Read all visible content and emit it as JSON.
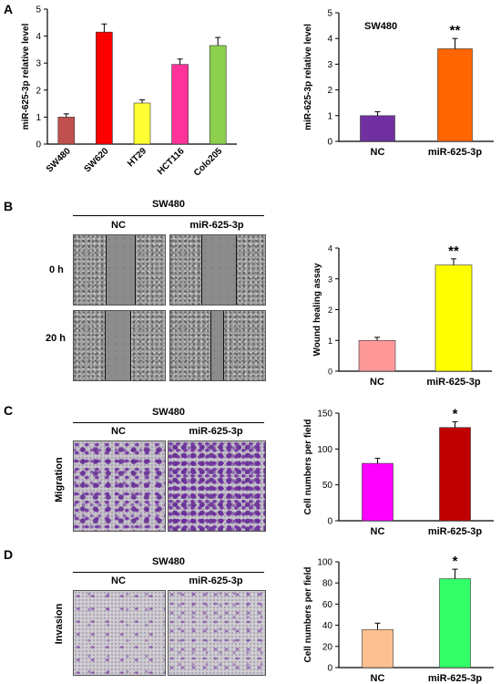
{
  "panels": {
    "a": "A",
    "b": "B",
    "c": "C",
    "d": "D"
  },
  "panel_b": {
    "header": "SW480",
    "col_nc": "NC",
    "col_mir": "miR-625-3p",
    "row_0h": "0 h",
    "row_20h": "20 h"
  },
  "panel_c": {
    "header": "SW480",
    "col_nc": "NC",
    "col_mir": "miR-625-3p",
    "side_label": "Migration"
  },
  "panel_d": {
    "header": "SW480",
    "col_nc": "NC",
    "col_mir": "miR-625-3p",
    "side_label": "Invasion"
  },
  "chart_data": [
    {
      "id": "a_left",
      "type": "bar",
      "categories": [
        "SW480",
        "SW620",
        "HT29",
        "HCT116",
        "Colo205"
      ],
      "values": [
        1.0,
        4.15,
        1.52,
        2.95,
        3.65
      ],
      "errors": [
        0.12,
        0.3,
        0.12,
        0.2,
        0.3
      ],
      "colors": [
        "#c0504d",
        "#ff0000",
        "#ffff33",
        "#ff3399",
        "#8dd04d"
      ],
      "ylabel": "miR-625-3p relative level",
      "ylim": [
        0,
        5
      ],
      "yticks": [
        0,
        1,
        2,
        3,
        4,
        5
      ],
      "annotations": [],
      "title": ""
    },
    {
      "id": "a_right",
      "type": "bar",
      "categories": [
        "NC",
        "miR-625-3p"
      ],
      "values": [
        1.0,
        3.6
      ],
      "errors": [
        0.15,
        0.4
      ],
      "colors": [
        "#7030a0",
        "#ff6600"
      ],
      "ylabel": "miR-625-3p relative level",
      "ylim": [
        0,
        5
      ],
      "yticks": [
        0,
        1,
        2,
        3,
        4,
        5
      ],
      "annotations": [
        "",
        "**"
      ],
      "title": "SW480"
    },
    {
      "id": "b_right",
      "type": "bar",
      "categories": [
        "NC",
        "miR-625-3p"
      ],
      "values": [
        1.0,
        3.45
      ],
      "errors": [
        0.1,
        0.2
      ],
      "colors": [
        "#ff9999",
        "#ffff00"
      ],
      "ylabel": "Wound healing assay",
      "ylim": [
        0,
        4
      ],
      "yticks": [
        0,
        1,
        2,
        3,
        4
      ],
      "annotations": [
        "",
        "**"
      ],
      "title": ""
    },
    {
      "id": "c_right",
      "type": "bar",
      "categories": [
        "NC",
        "miR-625-3p"
      ],
      "values": [
        80,
        130
      ],
      "errors": [
        7,
        8
      ],
      "colors": [
        "#ff00ff",
        "#c00000"
      ],
      "ylabel": "Cell numbers per field",
      "ylim": [
        0,
        150
      ],
      "yticks": [
        0,
        50,
        100,
        150
      ],
      "annotations": [
        "",
        "*"
      ],
      "title": ""
    },
    {
      "id": "d_right",
      "type": "bar",
      "categories": [
        "NC",
        "miR-625-3p"
      ],
      "values": [
        36,
        84
      ],
      "errors": [
        6,
        9
      ],
      "colors": [
        "#fac090",
        "#33ff66"
      ],
      "ylabel": "Cell numbers per field",
      "ylim": [
        0,
        100
      ],
      "yticks": [
        0,
        20,
        40,
        60,
        80,
        100
      ],
      "annotations": [
        "",
        "*"
      ],
      "title": ""
    }
  ]
}
